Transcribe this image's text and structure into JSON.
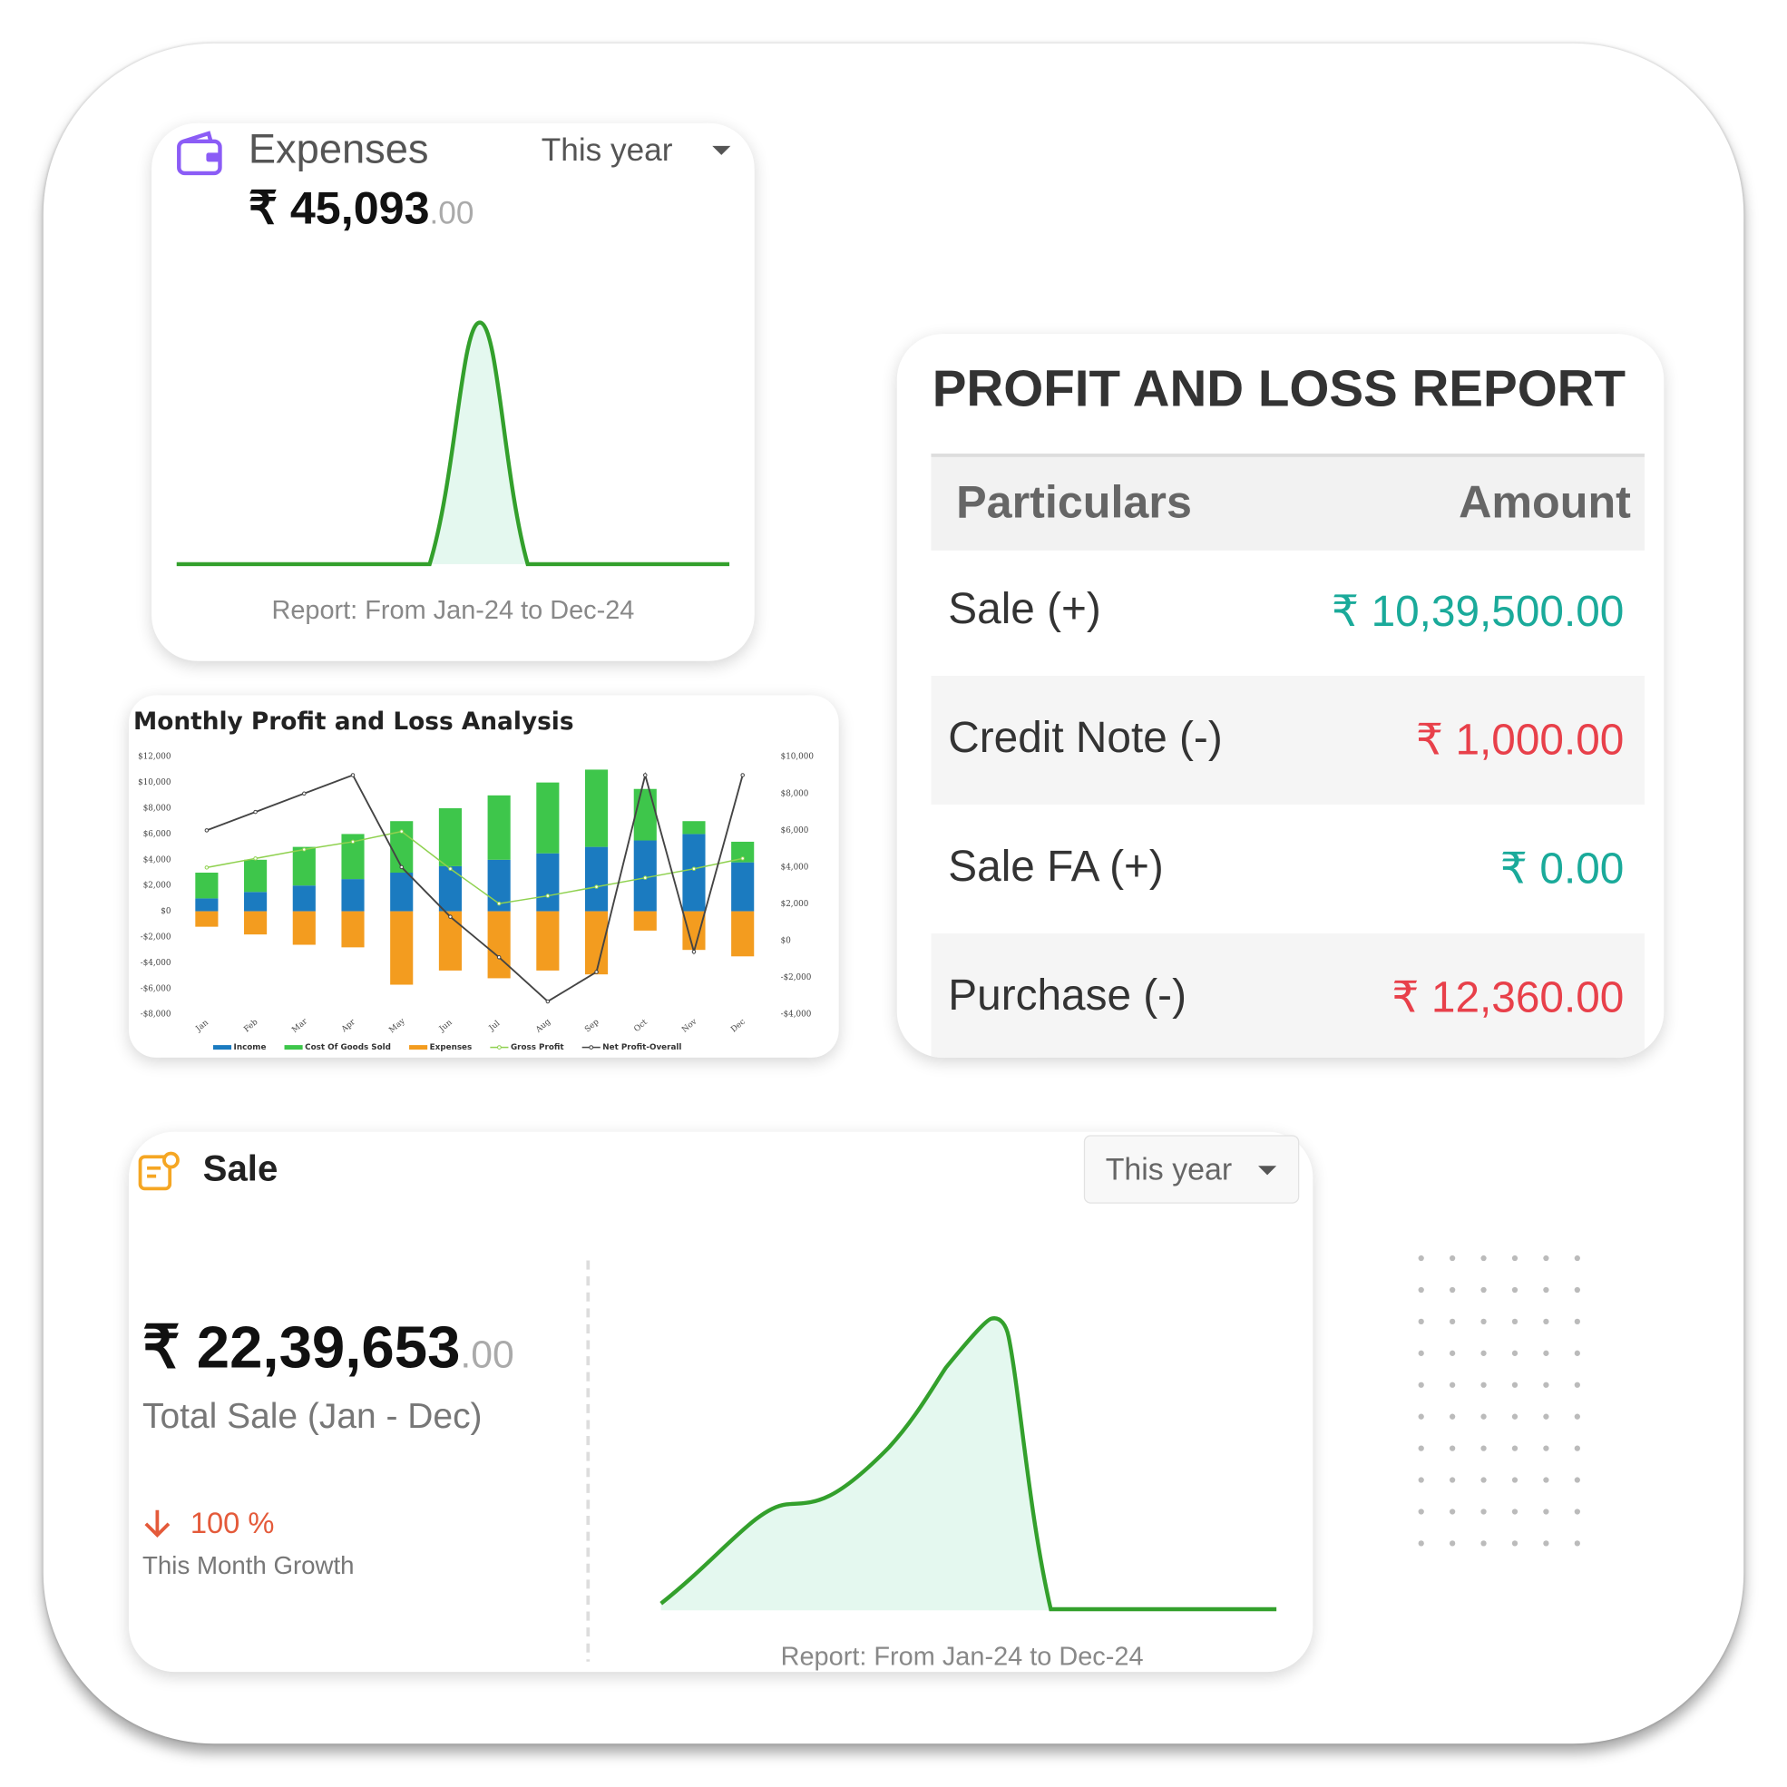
{
  "expenses": {
    "title": "Expenses",
    "period": "This year",
    "amount": "₹ 45,093",
    "decimals": ".00",
    "report": "Report: From Jan-24 to Dec-24"
  },
  "profit_loss": {
    "title": "PROFIT AND LOSS REPORT",
    "columns": [
      "Particulars",
      "Amount"
    ],
    "rows": [
      [
        "Sale (+)",
        "₹ 10,39,500.00"
      ],
      [
        "Credit Note (-)",
        "₹ 1,000.00"
      ],
      [
        "Sale FA (+)",
        "₹ 0.00"
      ],
      [
        "Purchase (-)",
        "₹ 12,360.00"
      ]
    ]
  },
  "chart_data": {
    "type": "bar",
    "title": "Monthly Profit and Loss Analysis",
    "categories": [
      "Jan",
      "Feb",
      "Mar",
      "Apr",
      "May",
      "Jun",
      "Jul",
      "Aug",
      "Sep",
      "Oct",
      "Nov",
      "Dec"
    ],
    "series": [
      {
        "name": "Income",
        "type": "bar",
        "color": "#1b7bc0",
        "values": [
          1000,
          1500,
          2000,
          2500,
          3000,
          3500,
          4000,
          4500,
          5000,
          5500,
          6000,
          3800
        ]
      },
      {
        "name": "Cost Of Goods Sold",
        "type": "bar",
        "color": "#3ec64b",
        "values": [
          2000,
          2500,
          3000,
          3500,
          4000,
          4500,
          5000,
          5500,
          6000,
          4000,
          1000,
          1600
        ]
      },
      {
        "name": "Expenses",
        "type": "bar",
        "color": "#f39c1f",
        "values": [
          -1200,
          -1800,
          -2600,
          -2800,
          -5700,
          -4600,
          -5200,
          -4600,
          -4900,
          -1500,
          -3000,
          -3500
        ]
      },
      {
        "name": "Gross Profit",
        "type": "line",
        "color": "#8fd14f",
        "values": [
          3400,
          4100,
          4800,
          5400,
          6200,
          3300,
          600,
          1200,
          1900,
          2600,
          3300,
          4100
        ]
      },
      {
        "name": "Net Profit-Overall",
        "type": "line",
        "axis": "y2",
        "color": "#444444",
        "values": [
          6000,
          7000,
          8000,
          9000,
          4000,
          1300,
          -900,
          -3300,
          -1700,
          9000,
          -600,
          9000
        ]
      }
    ],
    "ylim": [
      -8000,
      12000
    ],
    "yticks": [
      {
        "value": -8000,
        "label": "-$8,000"
      },
      {
        "value": -6000,
        "label": "-$6,000"
      },
      {
        "value": -4000,
        "label": "-$4,000"
      },
      {
        "value": -2000,
        "label": "-$2,000"
      },
      {
        "value": 0,
        "label": "$0"
      },
      {
        "value": 2000,
        "label": "$2,000"
      },
      {
        "value": 4000,
        "label": "$4,000"
      },
      {
        "value": 6000,
        "label": "$6,000"
      },
      {
        "value": 8000,
        "label": "$8,000"
      },
      {
        "value": 10000,
        "label": "$10,000"
      },
      {
        "value": 12000,
        "label": "$12,000"
      }
    ],
    "y2lim": [
      -4000,
      10000
    ],
    "y2ticks": [
      {
        "value": -4000,
        "label": "-$4,000"
      },
      {
        "value": -2000,
        "label": "-$2,000"
      },
      {
        "value": 0,
        "label": "$0"
      },
      {
        "value": 2000,
        "label": "$2,000"
      },
      {
        "value": 4000,
        "label": "$4,000"
      },
      {
        "value": 6000,
        "label": "$6,000"
      },
      {
        "value": 8000,
        "label": "$8,000"
      },
      {
        "value": 10000,
        "label": "$10,000"
      }
    ],
    "grid": false,
    "legend": "bottom"
  },
  "sale": {
    "title": "Sale",
    "period": "This year",
    "amount": "₹ 22,39,653",
    "decimals": ".00",
    "caption": "Total Sale (Jan - Dec)",
    "growth": "100 %",
    "growth_caption": "This Month Growth",
    "report": "Report: From Jan-24 to Dec-24"
  }
}
